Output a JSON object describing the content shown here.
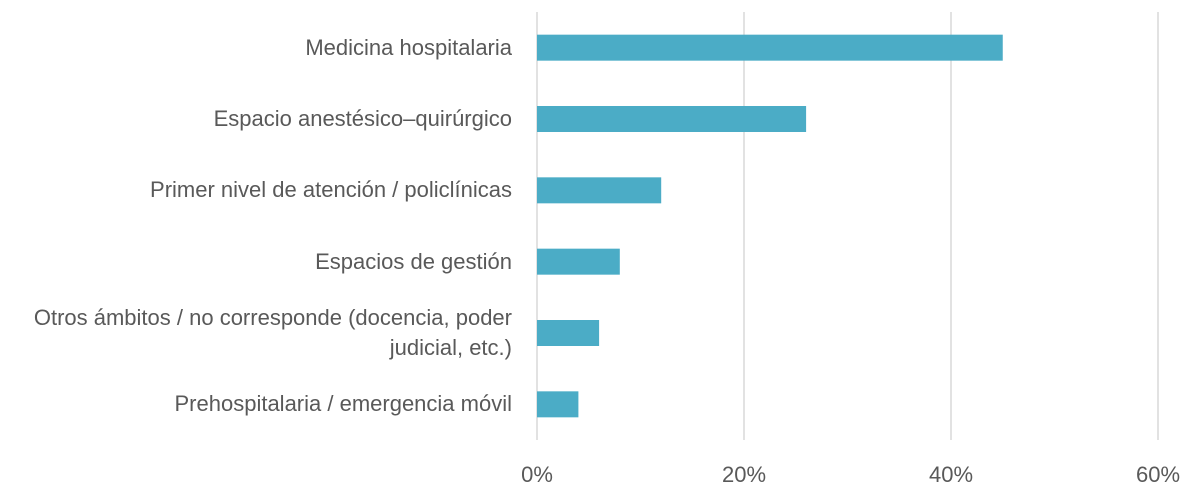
{
  "chart_data": {
    "type": "barh",
    "categories": [
      "Medicina hospitalaria",
      "Espacio anestésico–quirúrgico",
      "Primer nivel de atención / policlínicas",
      "Espacios de gestión",
      "Otros ámbitos / no corresponde (docencia, poder judicial, etc.)",
      "Prehospitalaria / emergencia móvil"
    ],
    "values": [
      45,
      26,
      12,
      8,
      6,
      4
    ],
    "color": "#4bacc6",
    "xlim": [
      0,
      60
    ],
    "xticks": [
      {
        "value": 0,
        "label": "0%"
      },
      {
        "value": 20,
        "label": "20%"
      },
      {
        "value": 40,
        "label": "40%"
      },
      {
        "value": 60,
        "label": "60%"
      }
    ],
    "grid": true
  }
}
